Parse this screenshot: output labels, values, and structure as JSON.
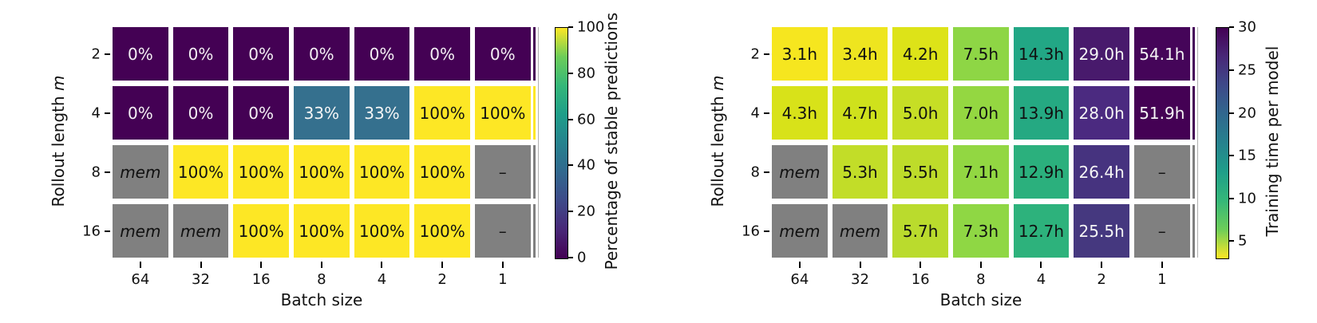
{
  "chart_data": [
    {
      "type": "heatmap",
      "xlabel": "Batch size",
      "ylabel_prefix": "Rollout length",
      "ylabel_italic": "m",
      "x_categories": [
        "64",
        "32",
        "16",
        "8",
        "4",
        "2",
        "1"
      ],
      "y_categories": [
        "2",
        "4",
        "8",
        "16"
      ],
      "colorbar": {
        "label": "Percentage of stable predictions",
        "colormap": "viridis",
        "range": [
          0,
          100
        ],
        "ticks": [
          {
            "label": "0",
            "f": 0.0
          },
          {
            "label": "20",
            "f": 0.2
          },
          {
            "label": "40",
            "f": 0.4
          },
          {
            "label": "60",
            "f": 0.6
          },
          {
            "label": "80",
            "f": 0.8
          },
          {
            "label": "100",
            "f": 1.0
          }
        ],
        "stops_bottom_to_top": [
          "#440154",
          "#482878",
          "#3e4a89",
          "#31688e",
          "#26828e",
          "#1f9e89",
          "#35b779",
          "#6dcd59",
          "#fde725"
        ]
      },
      "rows": [
        [
          {
            "t": "0%",
            "v": 0,
            "bg": "#440154",
            "fg": "#f5f0f5"
          },
          {
            "t": "0%",
            "v": 0,
            "bg": "#440154",
            "fg": "#f5f0f5"
          },
          {
            "t": "0%",
            "v": 0,
            "bg": "#440154",
            "fg": "#f5f0f5"
          },
          {
            "t": "0%",
            "v": 0,
            "bg": "#440154",
            "fg": "#f5f0f5"
          },
          {
            "t": "0%",
            "v": 0,
            "bg": "#440154",
            "fg": "#f5f0f5"
          },
          {
            "t": "0%",
            "v": 0,
            "bg": "#440154",
            "fg": "#f5f0f5"
          },
          {
            "t": "0%",
            "v": 0,
            "bg": "#440154",
            "fg": "#f5f0f5"
          }
        ],
        [
          {
            "t": "0%",
            "v": 0,
            "bg": "#440154",
            "fg": "#f5f0f5"
          },
          {
            "t": "0%",
            "v": 0,
            "bg": "#440154",
            "fg": "#f5f0f5"
          },
          {
            "t": "0%",
            "v": 0,
            "bg": "#440154",
            "fg": "#f5f0f5"
          },
          {
            "t": "33%",
            "v": 33,
            "bg": "#35708e",
            "fg": "#f5f5f5"
          },
          {
            "t": "33%",
            "v": 33,
            "bg": "#35708e",
            "fg": "#f5f5f5"
          },
          {
            "t": "100%",
            "v": 100,
            "bg": "#fde725",
            "fg": "#111111"
          },
          {
            "t": "100%",
            "v": 100,
            "bg": "#fde725",
            "fg": "#111111"
          }
        ],
        [
          {
            "t": "mem",
            "v": null,
            "bg": "#808080",
            "fg": "#111111",
            "i": true
          },
          {
            "t": "100%",
            "v": 100,
            "bg": "#fde725",
            "fg": "#111111"
          },
          {
            "t": "100%",
            "v": 100,
            "bg": "#fde725",
            "fg": "#111111"
          },
          {
            "t": "100%",
            "v": 100,
            "bg": "#fde725",
            "fg": "#111111"
          },
          {
            "t": "100%",
            "v": 100,
            "bg": "#fde725",
            "fg": "#111111"
          },
          {
            "t": "100%",
            "v": 100,
            "bg": "#fde725",
            "fg": "#111111"
          },
          {
            "t": "–",
            "v": null,
            "bg": "#808080",
            "fg": "#111111"
          }
        ],
        [
          {
            "t": "mem",
            "v": null,
            "bg": "#808080",
            "fg": "#111111",
            "i": true
          },
          {
            "t": "mem",
            "v": null,
            "bg": "#808080",
            "fg": "#111111",
            "i": true
          },
          {
            "t": "100%",
            "v": 100,
            "bg": "#fde725",
            "fg": "#111111"
          },
          {
            "t": "100%",
            "v": 100,
            "bg": "#fde725",
            "fg": "#111111"
          },
          {
            "t": "100%",
            "v": 100,
            "bg": "#fde725",
            "fg": "#111111"
          },
          {
            "t": "100%",
            "v": 100,
            "bg": "#fde725",
            "fg": "#111111"
          },
          {
            "t": "–",
            "v": null,
            "bg": "#808080",
            "fg": "#111111"
          }
        ]
      ]
    },
    {
      "type": "heatmap",
      "xlabel": "Batch size",
      "ylabel_prefix": "Rollout length",
      "ylabel_italic": "m",
      "x_categories": [
        "64",
        "32",
        "16",
        "8",
        "4",
        "2",
        "1"
      ],
      "y_categories": [
        "2",
        "4",
        "8",
        "16"
      ],
      "colorbar": {
        "label": "Training time per model",
        "colormap": "viridis_r",
        "range": [
          3.1,
          30
        ],
        "ticks": [
          {
            "label": "5",
            "f": 0.071
          },
          {
            "label": "10",
            "f": 0.257
          },
          {
            "label": "15",
            "f": 0.442
          },
          {
            "label": "20",
            "f": 0.628
          },
          {
            "label": "25",
            "f": 0.814
          },
          {
            "label": "30",
            "f": 1.0
          }
        ],
        "stops_bottom_to_top": [
          "#fde725",
          "#6dcd59",
          "#35b779",
          "#1f9e89",
          "#26828e",
          "#31688e",
          "#3e4a89",
          "#482878",
          "#440154"
        ]
      },
      "rows": [
        [
          {
            "t": "3.1h",
            "v": 3.1,
            "bg": "#f6e61f",
            "fg": "#111111"
          },
          {
            "t": "3.4h",
            "v": 3.4,
            "bg": "#eee51f",
            "fg": "#111111"
          },
          {
            "t": "4.2h",
            "v": 4.2,
            "bg": "#dde318",
            "fg": "#111111"
          },
          {
            "t": "7.5h",
            "v": 7.5,
            "bg": "#8ed645",
            "fg": "#111111"
          },
          {
            "t": "14.3h",
            "v": 14.3,
            "bg": "#22a785",
            "fg": "#111111"
          },
          {
            "t": "29.0h",
            "v": 29.0,
            "bg": "#481a6c",
            "fg": "#f5f5f5"
          },
          {
            "t": "54.1h",
            "v": 54.1,
            "bg": "#450559",
            "fg": "#f5f5f5"
          }
        ],
        [
          {
            "t": "4.3h",
            "v": 4.3,
            "bg": "#d8e219",
            "fg": "#111111"
          },
          {
            "t": "4.7h",
            "v": 4.7,
            "bg": "#cfe11c",
            "fg": "#111111"
          },
          {
            "t": "5.0h",
            "v": 5.0,
            "bg": "#c6de25",
            "fg": "#111111"
          },
          {
            "t": "7.0h",
            "v": 7.0,
            "bg": "#94d741",
            "fg": "#111111"
          },
          {
            "t": "13.9h",
            "v": 13.9,
            "bg": "#25a982",
            "fg": "#111111"
          },
          {
            "t": "28.0h",
            "v": 28.0,
            "bg": "#4b2a80",
            "fg": "#f5f5f5"
          },
          {
            "t": "51.9h",
            "v": 51.9,
            "bg": "#440154",
            "fg": "#f5f5f5"
          }
        ],
        [
          {
            "t": "mem",
            "v": null,
            "bg": "#808080",
            "fg": "#111111",
            "i": true
          },
          {
            "t": "5.3h",
            "v": 5.3,
            "bg": "#c2dd28",
            "fg": "#111111"
          },
          {
            "t": "5.5h",
            "v": 5.5,
            "bg": "#bedc2a",
            "fg": "#111111"
          },
          {
            "t": "7.1h",
            "v": 7.1,
            "bg": "#92d742",
            "fg": "#111111"
          },
          {
            "t": "12.9h",
            "v": 12.9,
            "bg": "#2bb07d",
            "fg": "#111111"
          },
          {
            "t": "26.4h",
            "v": 26.4,
            "bg": "#46337f",
            "fg": "#f5f5f5"
          },
          {
            "t": "–",
            "v": null,
            "bg": "#808080",
            "fg": "#111111"
          }
        ],
        [
          {
            "t": "mem",
            "v": null,
            "bg": "#808080",
            "fg": "#111111",
            "i": true
          },
          {
            "t": "mem",
            "v": null,
            "bg": "#808080",
            "fg": "#111111",
            "i": true
          },
          {
            "t": "5.7h",
            "v": 5.7,
            "bg": "#badb2d",
            "fg": "#111111"
          },
          {
            "t": "7.3h",
            "v": 7.3,
            "bg": "#8fd744",
            "fg": "#111111"
          },
          {
            "t": "12.7h",
            "v": 12.7,
            "bg": "#2db27c",
            "fg": "#111111"
          },
          {
            "t": "25.5h",
            "v": 25.5,
            "bg": "#45387f",
            "fg": "#f5f5f5"
          },
          {
            "t": "–",
            "v": null,
            "bg": "#808080",
            "fg": "#111111"
          }
        ]
      ]
    }
  ]
}
